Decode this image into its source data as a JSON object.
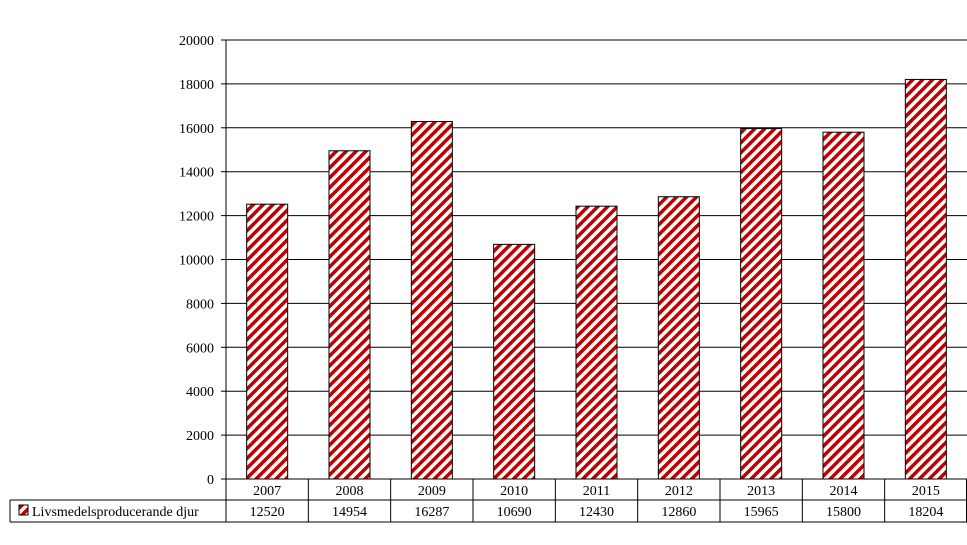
{
  "chart_data": {
    "type": "bar",
    "categories": [
      "2007",
      "2008",
      "2009",
      "2010",
      "2011",
      "2012",
      "2013",
      "2014",
      "2015"
    ],
    "series": [
      {
        "name": "Livsmedelsproducerande djur",
        "values": [
          12520,
          14954,
          16287,
          10690,
          12430,
          12860,
          15965,
          15800,
          18204
        ],
        "value_labels": [
          "12520",
          "14954",
          "16287",
          "10690",
          "12430",
          "12860",
          "15965",
          "15800",
          "18204"
        ],
        "color": "#c00000",
        "pattern": "diagonal-hatch"
      }
    ],
    "yticks": [
      "0",
      "2000",
      "4000",
      "6000",
      "8000",
      "10000",
      "12000",
      "14000",
      "16000",
      "18000",
      "20000"
    ],
    "ylim": [
      0,
      20000
    ],
    "grid": true,
    "legend": "data-table-left",
    "title": "",
    "xlabel": "",
    "ylabel": ""
  }
}
